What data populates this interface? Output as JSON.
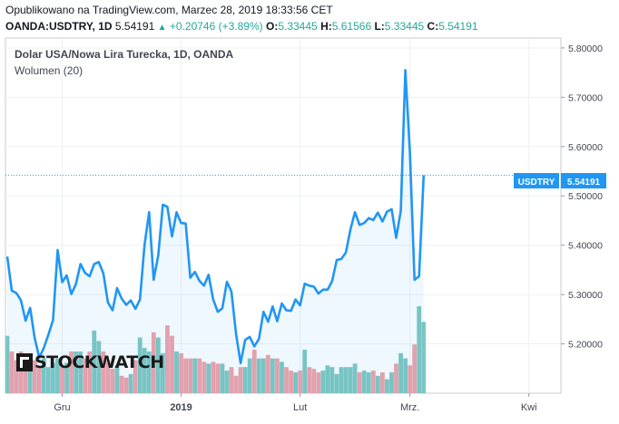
{
  "header": {
    "published": "Opublikowano na TradingView.com, Marzec 28, 2019 18:33:56 CET",
    "symbol": "OANDA:USDTRY, 1D",
    "last": "5.54191",
    "change": "+0.20746 (+3.89%)",
    "o_label": "O:",
    "o": "5.33445",
    "h_label": "H:",
    "h": "5.61566",
    "l_label": "L:",
    "l": "5.33445",
    "c_label": "C:",
    "c": "5.54191"
  },
  "chart_data": {
    "type": "line",
    "title": "Dolar USA/Nowa Lira Turecka, 1D, OANDA",
    "subtitle": "Wolumen (20)",
    "symbol_tag": "USDTRY",
    "last_price": 5.54191,
    "last_price_label": "5.54191",
    "ylim": [
      5.1,
      5.82
    ],
    "yticks": [
      5.2,
      5.3,
      5.4,
      5.5,
      5.6,
      5.7,
      5.8
    ],
    "ytick_labels": [
      "5.20000",
      "5.30000",
      "5.40000",
      "5.50000",
      "5.60000",
      "5.70000",
      "5.80000"
    ],
    "xlabels": [
      {
        "index": 12,
        "label": "Gru"
      },
      {
        "index": 38,
        "label": "2019"
      },
      {
        "index": 64,
        "label": "Lut"
      },
      {
        "index": 88,
        "label": "Mrz."
      },
      {
        "index": 114,
        "label": "Kwi"
      }
    ],
    "x_count": 122,
    "series": [
      {
        "values": [
          5.377,
          5.308,
          5.303,
          5.288,
          5.247,
          5.273,
          5.212,
          5.172,
          5.192,
          5.219,
          5.248,
          5.39,
          5.325,
          5.339,
          5.301,
          5.321,
          5.362,
          5.344,
          5.337,
          5.362,
          5.366,
          5.343,
          5.284,
          5.268,
          5.313,
          5.292,
          5.279,
          5.288,
          5.271,
          5.29,
          5.4,
          5.467,
          5.33,
          5.38,
          5.482,
          5.478,
          5.418,
          5.467,
          5.445,
          5.444,
          5.334,
          5.346,
          5.328,
          5.318,
          5.34,
          5.29,
          5.265,
          5.272,
          5.326,
          5.306,
          5.22,
          5.161,
          5.208,
          5.214,
          5.195,
          5.21,
          5.265,
          5.245,
          5.276,
          5.246,
          5.282,
          5.268,
          5.267,
          5.29,
          5.278,
          5.322,
          5.318,
          5.316,
          5.302,
          5.31,
          5.31,
          5.327,
          5.37,
          5.372,
          5.385,
          5.432,
          5.467,
          5.441,
          5.445,
          5.455,
          5.451,
          5.466,
          5.448,
          5.468,
          5.473,
          5.415,
          5.47,
          5.755,
          5.59,
          5.33,
          5.337,
          5.542
        ],
        "color": "#2196f3"
      }
    ],
    "volume": {
      "values": [
        0.66,
        0.48,
        0.38,
        0.48,
        0.38,
        0.42,
        0.38,
        0.3,
        0.4,
        0.3,
        0.35,
        0.4,
        0.3,
        0.35,
        0.48,
        0.48,
        0.48,
        0.4,
        0.48,
        0.72,
        0.6,
        0.48,
        0.38,
        0.28,
        0.32,
        0.2,
        0.18,
        0.22,
        0.38,
        0.64,
        0.52,
        0.48,
        0.7,
        0.64,
        0.46,
        0.78,
        0.66,
        0.48,
        0.46,
        0.4,
        0.4,
        0.4,
        0.4,
        0.36,
        0.34,
        0.36,
        0.34,
        0.34,
        0.26,
        0.3,
        0.2,
        0.3,
        0.3,
        0.4,
        0.5,
        0.4,
        0.4,
        0.44,
        0.4,
        0.4,
        0.36,
        0.3,
        0.26,
        0.24,
        0.26,
        0.5,
        0.3,
        0.28,
        0.24,
        0.26,
        0.32,
        0.3,
        0.22,
        0.3,
        0.3,
        0.3,
        0.34,
        0.24,
        0.26,
        0.24,
        0.26,
        0.2,
        0.24,
        0.16,
        0.24,
        0.34,
        0.46,
        0.4,
        0.32,
        0.56,
        1.0,
        0.82
      ],
      "up_color": "#7fc8c2",
      "down_color": "#f0a2a8"
    },
    "watermark": "STOCKWATCH"
  }
}
